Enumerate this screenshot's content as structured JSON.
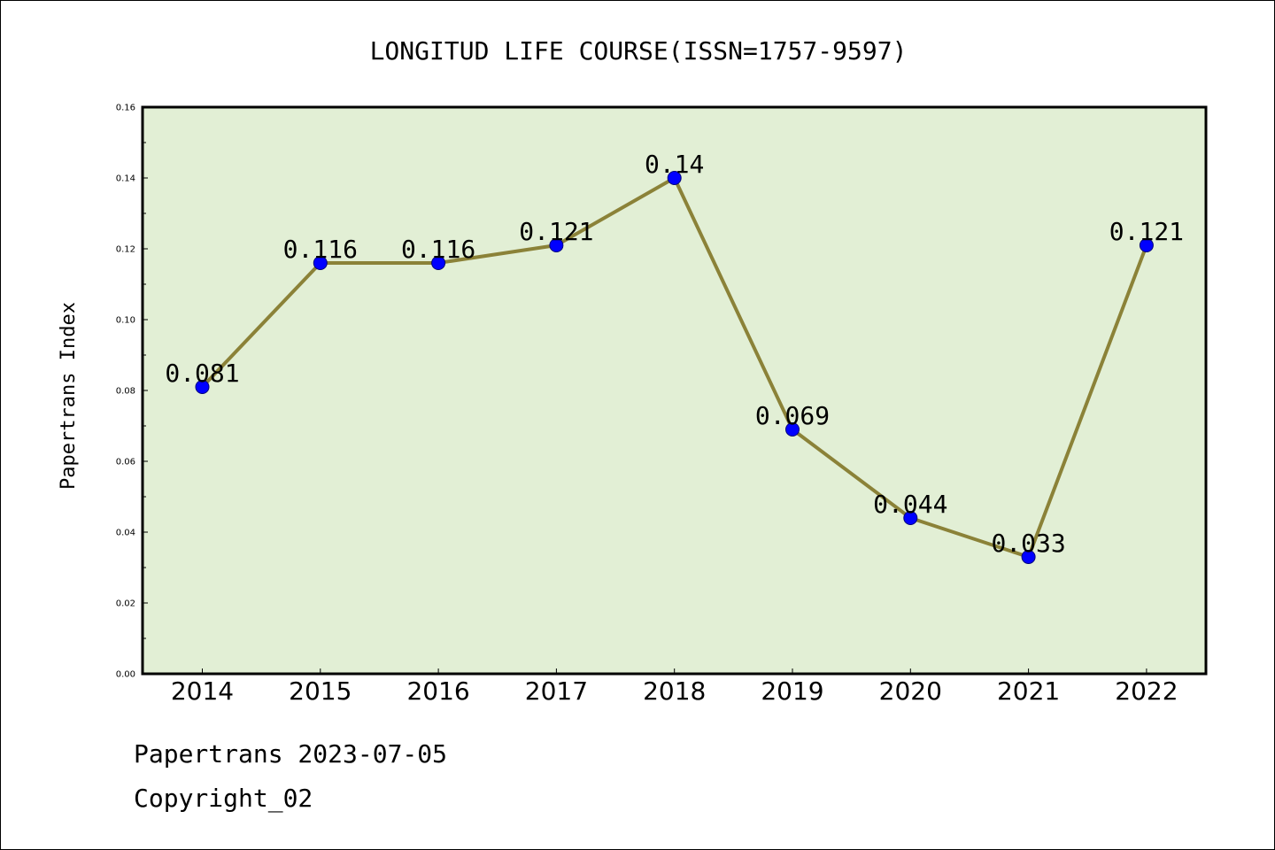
{
  "chart_data": {
    "type": "line",
    "title": "LONGITUD LIFE COURSE(ISSN=1757-9597)",
    "xlabel": "",
    "ylabel": "Papertrans Index",
    "categories": [
      "2014",
      "2015",
      "2016",
      "2017",
      "2018",
      "2019",
      "2020",
      "2021",
      "2022"
    ],
    "series": [
      {
        "values": [
          0.081,
          0.116,
          0.116,
          0.121,
          0.14,
          0.069,
          0.044,
          0.033,
          0.121
        ]
      }
    ],
    "data_labels": [
      "0.081",
      "0.116",
      "0.116",
      "0.121",
      "0.14",
      "0.069",
      "0.044",
      "0.033",
      "0.121"
    ],
    "ylim": [
      0,
      0.16
    ],
    "yticks": [
      "0.00",
      "0.02",
      "0.04",
      "0.06",
      "0.08",
      "0.10",
      "0.12",
      "0.14",
      "0.16"
    ],
    "grid": false,
    "colors": {
      "plot_background": "#e2efd5",
      "line": "#8b8238",
      "marker": "#0000ff"
    }
  },
  "footer": {
    "line1": "Papertrans 2023-07-05",
    "line2": "Copyright_02"
  }
}
